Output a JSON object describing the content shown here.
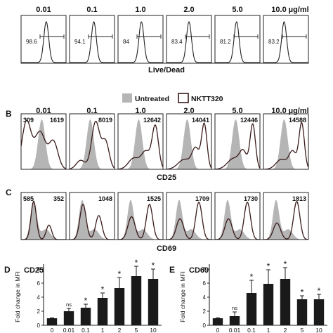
{
  "chart_data": [
    {
      "type": "histogram-panels",
      "panel_letter": "",
      "concentrations": [
        "0.01",
        "0.1",
        "1.0",
        "2.0",
        "5.0",
        "10.0 µg/ml"
      ],
      "gate_values": [
        "98.6",
        "94.1",
        "84",
        "83.4",
        "81.2",
        "83.2"
      ],
      "xlabel": "Live/Dead"
    },
    {
      "type": "legend",
      "entries": [
        {
          "name": "Untreated",
          "color": "#b5b5b5",
          "style": "filled"
        },
        {
          "name": "NKTT320",
          "color": "#3a1a1a",
          "style": "outline"
        }
      ]
    },
    {
      "type": "histogram-overlay-panels",
      "panel_letter": "B",
      "concentrations": [
        "0.01",
        "0.1",
        "1.0",
        "2.0",
        "5.0",
        "10.0 µg/ml"
      ],
      "untreated_mfi": "1619",
      "mfi_values": [
        "309",
        "8019",
        "12642",
        "14041",
        "12446",
        "14588"
      ],
      "xlabel": "CD25"
    },
    {
      "type": "histogram-overlay-panels",
      "panel_letter": "C",
      "untreated_mfi": "352",
      "mfi_values": [
        "585",
        "1048",
        "1525",
        "1709",
        "1730",
        "1813"
      ],
      "xlabel": "CD69"
    },
    {
      "type": "bar",
      "panel_letter": "D",
      "title": "CD25",
      "ylabel": "Fold change in MFI",
      "categories": [
        "0",
        "0.01",
        "0.1",
        "1",
        "2",
        "5",
        "10"
      ],
      "values": [
        1.0,
        2.0,
        2.5,
        3.9,
        5.3,
        7.0,
        6.6
      ],
      "errors": [
        0.05,
        0.4,
        0.5,
        0.7,
        1.5,
        1.4,
        1.4
      ],
      "significance": [
        "",
        "ns",
        "*",
        "*",
        "*",
        "*",
        "*"
      ],
      "yticks": [
        "0",
        "2",
        "4",
        "6",
        "8"
      ],
      "ylim": [
        0,
        8.5
      ]
    },
    {
      "type": "bar",
      "panel_letter": "E",
      "title": "CD69",
      "ylabel": "Fold change in MFI",
      "categories": [
        "0",
        "0.01",
        "0.1",
        "1",
        "2",
        "5",
        "10"
      ],
      "values": [
        1.0,
        1.3,
        4.6,
        5.9,
        6.6,
        3.7,
        3.7
      ],
      "errors": [
        0.05,
        0.6,
        1.8,
        2.0,
        1.6,
        0.5,
        0.7
      ],
      "significance": [
        "",
        "ns",
        "*",
        "*",
        "*",
        "*",
        "*"
      ],
      "yticks": [
        "0",
        "2",
        "4",
        "6",
        "8"
      ],
      "ylim": [
        0,
        8.5
      ]
    }
  ]
}
